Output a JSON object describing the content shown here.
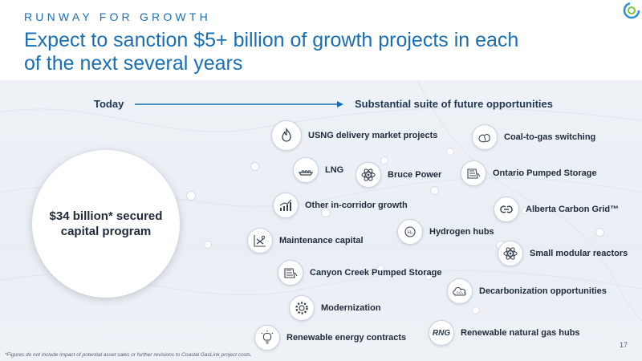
{
  "header": {
    "kicker": "RUNWAY FOR GROWTH",
    "title": "Expect to sanction $5+ billion of growth projects in each of the next several years"
  },
  "timeline": {
    "today_label": "Today",
    "future_label": "Substantial suite of future opportunities"
  },
  "secured": {
    "label": "$34 billion* secured capital program"
  },
  "opportunities": [
    {
      "label": "USNG delivery market projects",
      "icon": "flame-icon"
    },
    {
      "label": "LNG",
      "icon": "lng-tanker-icon"
    },
    {
      "label": "Bruce Power",
      "icon": "atom-icon"
    },
    {
      "label": "Other in-corridor growth",
      "icon": "growth-chart-icon"
    },
    {
      "label": "Maintenance capital",
      "icon": "wrench-chart-icon"
    },
    {
      "label": "Hydrogen hubs",
      "icon": "hydrogen-icon"
    },
    {
      "label": "Canyon Creek Pumped Storage",
      "icon": "dam-icon"
    },
    {
      "label": "Modernization",
      "icon": "gear-icon"
    },
    {
      "label": "Renewable energy contracts",
      "icon": "lightbulb-icon"
    },
    {
      "label": "Coal-to-gas switching",
      "icon": "coal-to-gas-icon"
    },
    {
      "label": "Ontario Pumped Storage",
      "icon": "dam-icon"
    },
    {
      "label": "Alberta Carbon Grid™",
      "icon": "carbon-grid-icon"
    },
    {
      "label": "Small modular reactors",
      "icon": "atom-icon"
    },
    {
      "label": "Decarbonization opportunities",
      "icon": "co2-cloud-icon"
    },
    {
      "label": "Renewable natural gas hubs",
      "icon": "rng-icon",
      "icon_text": "RNG"
    }
  ],
  "footer": {
    "footnote": "*Figures do not include impact of potential asset sales or further revisions to Coastal GasLink project costs.",
    "page_number": "17"
  },
  "colors": {
    "accent": "#1a6fb4",
    "text_dark": "#1f2a3a",
    "background_band": "#eef2f7"
  }
}
